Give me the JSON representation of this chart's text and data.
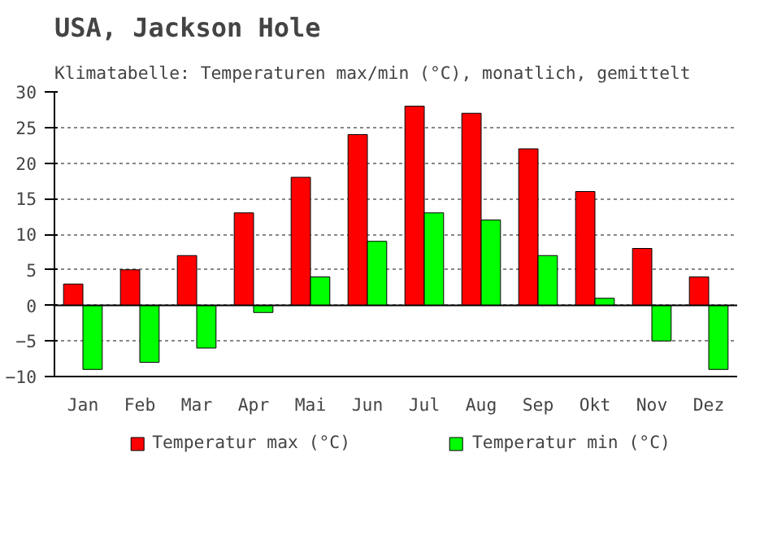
{
  "chart_data": {
    "type": "bar",
    "title": "USA, Jackson Hole",
    "subtitle": "Klimatabelle: Temperaturen max/min (°C), monatlich, gemittelt",
    "categories": [
      "Jan",
      "Feb",
      "Mar",
      "Apr",
      "Mai",
      "Jun",
      "Jul",
      "Aug",
      "Sep",
      "Okt",
      "Nov",
      "Dez"
    ],
    "series": [
      {
        "name": "Temperatur max (°C)",
        "color": "#ff0000",
        "values": [
          3,
          5,
          7,
          13,
          18,
          24,
          28,
          27,
          22,
          16,
          8,
          4
        ]
      },
      {
        "name": "Temperatur min (°C)",
        "color": "#00ff00",
        "values": [
          -9,
          -8,
          -6,
          -1,
          4,
          9,
          13,
          12,
          7,
          1,
          -5,
          -9
        ]
      }
    ],
    "ylim": [
      -10,
      30
    ],
    "yticks": [
      -10,
      -5,
      0,
      5,
      10,
      15,
      20,
      25,
      30
    ],
    "grid": "y",
    "legend": "bottom"
  }
}
